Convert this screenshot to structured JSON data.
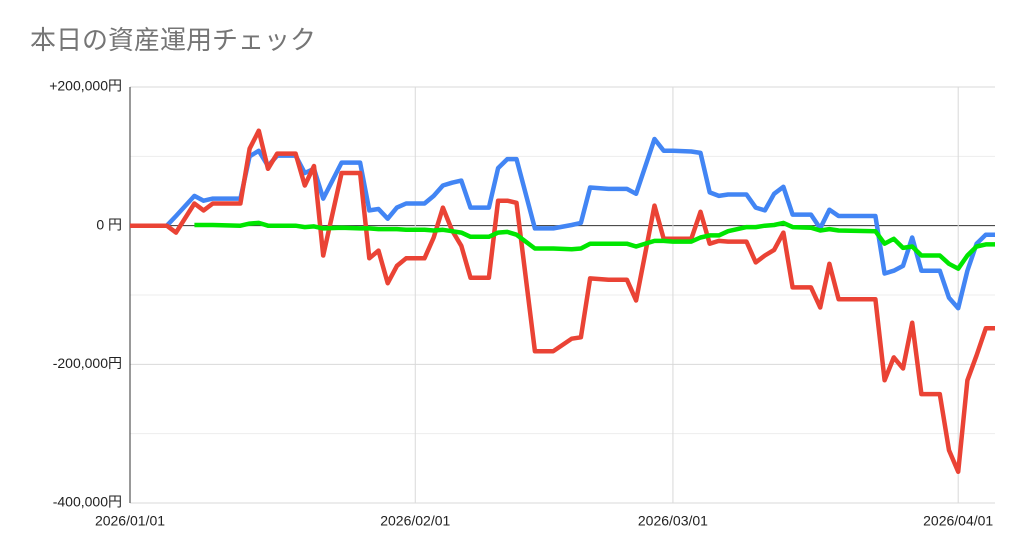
{
  "chart_data": {
    "type": "line",
    "title": "本日の資産運用チェック",
    "x": [
      "2026/01/01",
      "2026/01/05",
      "2026/01/06",
      "2026/01/08",
      "2026/01/09",
      "2026/01/10",
      "2026/01/13",
      "2026/01/14",
      "2026/01/15",
      "2026/01/16",
      "2026/01/17",
      "2026/01/19",
      "2026/01/20",
      "2026/01/21",
      "2026/01/22",
      "2026/01/24",
      "2026/01/26",
      "2026/01/27",
      "2026/01/28",
      "2026/01/29",
      "2026/01/30",
      "2026/01/31",
      "2026/02/02",
      "2026/02/03",
      "2026/02/04",
      "2026/02/05",
      "2026/02/06",
      "2026/02/07",
      "2026/02/09",
      "2026/02/10",
      "2026/02/11",
      "2026/02/12",
      "2026/02/14",
      "2026/02/16",
      "2026/02/18",
      "2026/02/19",
      "2026/02/20",
      "2026/02/22",
      "2026/02/24",
      "2026/02/25",
      "2026/02/27",
      "2026/02/28",
      "2026/03/01",
      "2026/03/03",
      "2026/03/04",
      "2026/03/05",
      "2026/03/06",
      "2026/03/07",
      "2026/03/09",
      "2026/03/10",
      "2026/03/11",
      "2026/03/12",
      "2026/03/13",
      "2026/03/14",
      "2026/03/16",
      "2026/03/17",
      "2026/03/18",
      "2026/03/19",
      "2026/03/23",
      "2026/03/24",
      "2026/03/25",
      "2026/03/26",
      "2026/03/27",
      "2026/03/28",
      "2026/03/30",
      "2026/03/31",
      "2026/04/01",
      "2026/04/02",
      "2026/04/03",
      "2026/04/04",
      "2026/04/05"
    ],
    "series": [
      {
        "color": "#4285f4",
        "values": [
          0,
          0,
          14000,
          43000,
          36000,
          39000,
          39000,
          100000,
          108000,
          86000,
          101000,
          101000,
          76000,
          82000,
          39000,
          91000,
          91000,
          22000,
          24000,
          10000,
          26000,
          32000,
          32000,
          43000,
          58000,
          62000,
          65000,
          26000,
          26000,
          83000,
          96000,
          96000,
          -4000,
          -4000,
          1000,
          4000,
          55000,
          53000,
          53000,
          46000,
          125000,
          108000,
          108000,
          107000,
          105000,
          48000,
          43000,
          45000,
          45000,
          26000,
          22000,
          46000,
          56000,
          16000,
          16000,
          -4000,
          23000,
          14000,
          14000,
          -69000,
          -65000,
          -58000,
          -17000,
          -65000,
          -65000,
          -104000,
          -119000,
          -65000,
          -26000,
          -13000,
          -13000
        ]
      },
      {
        "color": "#ea4335",
        "values": [
          0,
          0,
          -10000,
          32000,
          22000,
          32000,
          32000,
          111000,
          137000,
          82000,
          104000,
          104000,
          58000,
          86000,
          -43000,
          76000,
          76000,
          -47000,
          -36000,
          -83000,
          -58000,
          -47000,
          -47000,
          -17000,
          26000,
          -7000,
          -29000,
          -75000,
          -75000,
          36000,
          36000,
          33000,
          -181000,
          -181000,
          -163000,
          -161000,
          -76000,
          -78000,
          -78000,
          -108000,
          29000,
          -19000,
          -19000,
          -19000,
          20000,
          -26000,
          -22000,
          -23000,
          -23000,
          -53000,
          -43000,
          -35000,
          -10000,
          -89000,
          -89000,
          -118000,
          -55000,
          -106000,
          -106000,
          -223000,
          -190000,
          -206000,
          -140000,
          -243000,
          -243000,
          -324000,
          -355000,
          -223000,
          -187000,
          -148000,
          -148000
        ]
      },
      {
        "color": "#00e600",
        "values": [
          null,
          null,
          null,
          1000,
          1000,
          1000,
          0,
          3000,
          4000,
          0,
          0,
          0,
          -2000,
          -1000,
          -4000,
          -3000,
          -4000,
          -4000,
          -5000,
          -5000,
          -5000,
          -6000,
          -6000,
          -7000,
          -6000,
          -8000,
          -10000,
          -16000,
          -16000,
          -10000,
          -9000,
          -13000,
          -33000,
          -33000,
          -34000,
          -33000,
          -26000,
          -26000,
          -26000,
          -30000,
          -22000,
          -22000,
          -23000,
          -23000,
          -17000,
          -14000,
          -14000,
          -8000,
          -2000,
          -2000,
          0,
          1000,
          4000,
          -2000,
          -3000,
          -7000,
          -5000,
          -7000,
          -8000,
          -26000,
          -19000,
          -32000,
          -30000,
          -43000,
          -43000,
          -55000,
          -62000,
          -43000,
          -30000,
          -27000,
          -27000
        ]
      }
    ],
    "xlim": [
      "2026/01/01",
      "2026/04/05"
    ],
    "xticks": [
      "2026/01/01",
      "2026/02/01",
      "2026/03/01",
      "2026/04/01"
    ],
    "ylim": [
      -400000,
      200000
    ],
    "yticks": [
      {
        "value": 200000,
        "label": "+200,000円"
      },
      {
        "value": 0,
        "label": "0 円"
      },
      {
        "value": -200000,
        "label": "-200,000円"
      },
      {
        "value": -400000,
        "label": "-400,000円"
      }
    ],
    "minor_yticks": [
      100000,
      -100000,
      -300000
    ],
    "grid": true
  }
}
